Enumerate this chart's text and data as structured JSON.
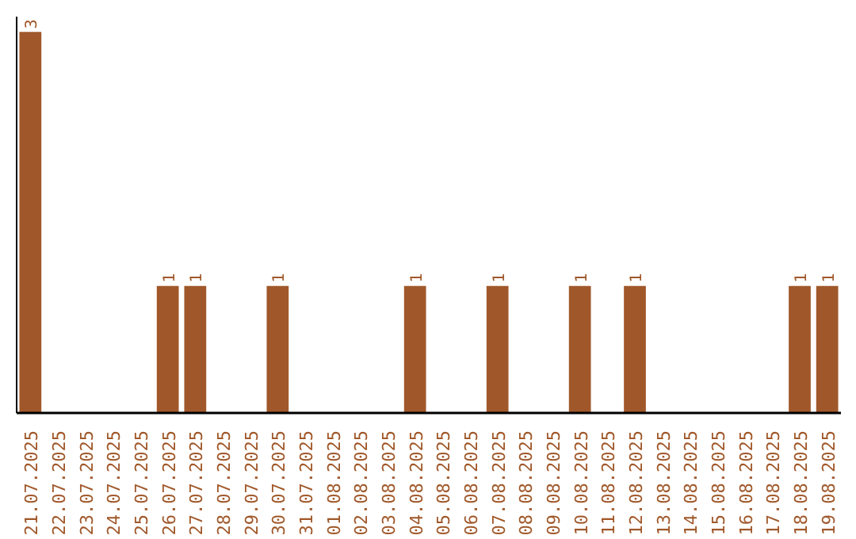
{
  "chart_data": {
    "type": "bar",
    "categories": [
      "21.07.2025",
      "22.07.2025",
      "23.07.2025",
      "24.07.2025",
      "25.07.2025",
      "26.07.2025",
      "27.07.2025",
      "28.07.2025",
      "29.07.2025",
      "30.07.2025",
      "31.07.2025",
      "01.08.2025",
      "02.08.2025",
      "03.08.2025",
      "04.08.2025",
      "05.08.2025",
      "06.08.2025",
      "07.08.2025",
      "08.08.2025",
      "09.08.2025",
      "10.08.2025",
      "11.08.2025",
      "12.08.2025",
      "13.08.2025",
      "14.08.2025",
      "15.08.2025",
      "16.08.2025",
      "17.08.2025",
      "18.08.2025",
      "19.08.2025"
    ],
    "values": [
      3,
      0,
      0,
      0,
      0,
      1,
      1,
      0,
      0,
      1,
      0,
      0,
      0,
      0,
      1,
      0,
      0,
      1,
      0,
      0,
      1,
      0,
      1,
      0,
      0,
      0,
      0,
      0,
      1,
      1
    ],
    "value_labels": [
      "3",
      null,
      null,
      null,
      null,
      "1",
      "1",
      null,
      null,
      "1",
      null,
      null,
      null,
      null,
      "1",
      null,
      null,
      "1",
      null,
      null,
      "1",
      null,
      "1",
      null,
      null,
      null,
      null,
      null,
      "1",
      "1"
    ],
    "color": "#a0582a",
    "grid": false
  }
}
